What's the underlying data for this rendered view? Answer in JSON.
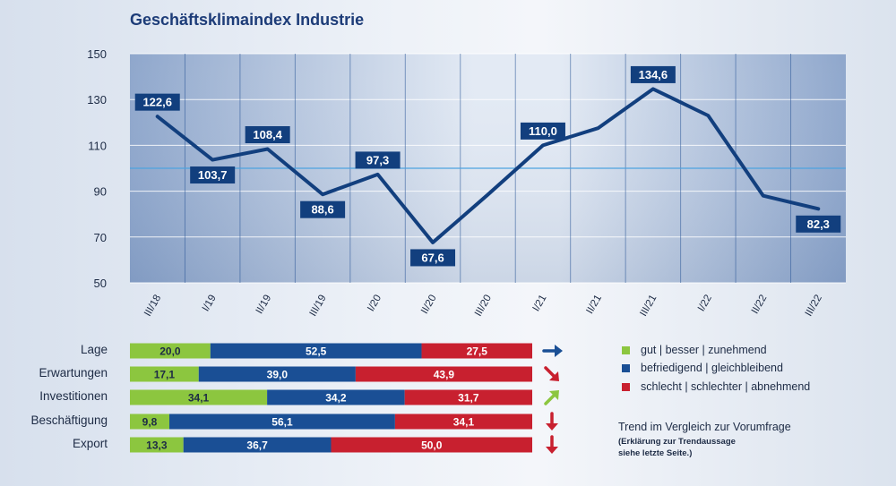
{
  "title": "Geschäftsklimaindex Industrie",
  "colors": {
    "line": "#123f7e",
    "label_bg": "#123f7e",
    "good": "#8cc63f",
    "neutral": "#1a4f95",
    "bad": "#c8202f",
    "plot_edge": "#8fa7cc",
    "plot_mid": "#dfe7f2",
    "ref_line": "#4da3e0"
  },
  "chart_data": [
    {
      "type": "line",
      "title": "Geschäftsklimaindex Industrie",
      "categories": [
        "III/18",
        "I/19",
        "II/19",
        "III/19",
        "I/20",
        "II/20",
        "III/20",
        "I/21",
        "II/21",
        "III/21",
        "I/22",
        "II/22",
        "III/22"
      ],
      "values": [
        122.6,
        103.7,
        108.4,
        88.6,
        97.3,
        67.6,
        88.5,
        110.0,
        117.5,
        134.6,
        123.0,
        88.0,
        82.3
      ],
      "data_labels": [
        "122,6",
        "103,7",
        "108,4",
        "88,6",
        "97,3",
        "67,6",
        null,
        "110,0",
        null,
        "134,6",
        null,
        null,
        "82,3"
      ],
      "ylim": [
        50,
        150
      ],
      "yticks": [
        50,
        70,
        90,
        110,
        130,
        150
      ],
      "reference_line": 100,
      "grid": true
    },
    {
      "type": "bar",
      "orientation": "horizontal-stacked",
      "categories": [
        "Lage",
        "Erwartungen",
        "Investitionen",
        "Beschäftigung",
        "Export"
      ],
      "series": [
        {
          "name": "gut | besser | zunehmend",
          "values": [
            20.0,
            17.1,
            34.1,
            9.8,
            13.3
          ],
          "labels": [
            "20,0",
            "17,1",
            "34,1",
            "9,8",
            "13,3"
          ]
        },
        {
          "name": "befriedigend | gleichbleibend",
          "values": [
            52.5,
            39.0,
            34.2,
            56.1,
            36.7
          ],
          "labels": [
            "52,5",
            "39,0",
            "34,2",
            "56,1",
            "36,7"
          ]
        },
        {
          "name": "schlecht | schlechter | abnehmend",
          "values": [
            27.5,
            43.9,
            31.7,
            34.1,
            50.0
          ],
          "labels": [
            "27,5",
            "43,9",
            "31,7",
            "34,1",
            "50,0"
          ]
        }
      ],
      "trends": [
        "flat",
        "down-right",
        "up-right",
        "down",
        "down"
      ],
      "xlim": [
        0,
        100
      ]
    }
  ],
  "legend": {
    "items": [
      {
        "label": "gut | besser | zunehmend",
        "color": "#8cc63f"
      },
      {
        "label": "befriedigend | gleichbleibend",
        "color": "#1a4f95"
      },
      {
        "label": "schlecht | schlechter | abnehmend",
        "color": "#c8202f"
      }
    ],
    "trend_note": "Trend im Vergleich zur Vorumfrage",
    "trend_sub_1": "(Erklärung zur Trendaussage",
    "trend_sub_2": "siehe letzte Seite.)"
  }
}
